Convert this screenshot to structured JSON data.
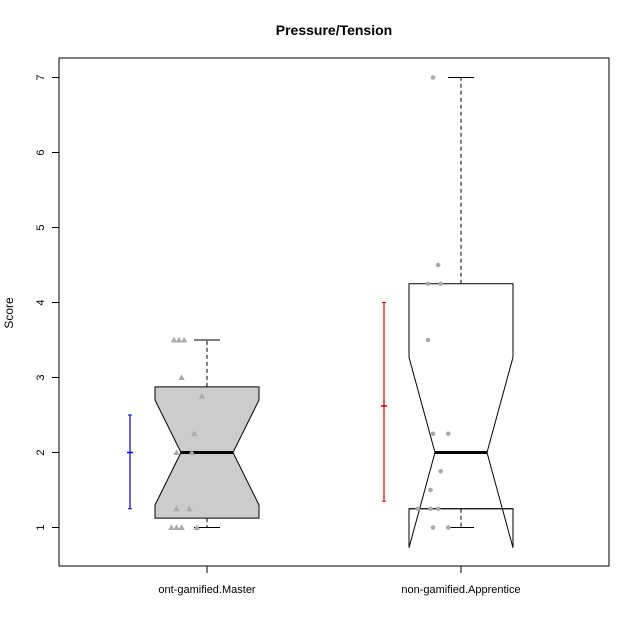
{
  "chart_data": {
    "type": "boxplot",
    "title": "Pressure/Tension",
    "ylabel": "Score",
    "xlabel": "",
    "ylim": [
      0.5,
      7.3
    ],
    "yticks": [
      "1",
      "2",
      "3",
      "4",
      "5",
      "6",
      "7"
    ],
    "grid": false,
    "groups": [
      {
        "label": "ont-gamified.Master",
        "box_fill": "#cccccc",
        "box": {
          "min": 1,
          "q1": 1.125,
          "median": 2,
          "q3": 2.875,
          "max": 3.5,
          "notch_low": 1.3,
          "notch_high": 2.7
        },
        "points_marker": "triangle",
        "points_color": "#aaaaaa",
        "points": [
          {
            "x": 0.87,
            "y": 3.5
          },
          {
            "x": 0.89,
            "y": 3.5
          },
          {
            "x": 0.91,
            "y": 3.5
          },
          {
            "x": 0.9,
            "y": 3.0
          },
          {
            "x": 0.98,
            "y": 2.75
          },
          {
            "x": 0.95,
            "y": 2.25
          },
          {
            "x": 0.88,
            "y": 2.0
          },
          {
            "x": 0.94,
            "y": 2.0
          },
          {
            "x": 0.88,
            "y": 1.25
          },
          {
            "x": 0.93,
            "y": 1.25
          },
          {
            "x": 0.86,
            "y": 1.0
          },
          {
            "x": 0.88,
            "y": 1.0
          },
          {
            "x": 0.9,
            "y": 1.0
          },
          {
            "x": 0.96,
            "y": 1.0
          }
        ],
        "error_bar": {
          "mean": 2.0,
          "low": 1.25,
          "high": 2.5,
          "color": "#0000cc"
        }
      },
      {
        "label": "non-gamified.Apprentice",
        "box_fill": "#ffffff",
        "box": {
          "min": 1,
          "q1": 1.25,
          "median": 2,
          "q3": 4.25,
          "max": 7,
          "notch_low": 0.73,
          "notch_high": 3.27
        },
        "points_marker": "circle",
        "points_color": "#aaaaaa",
        "points": [
          {
            "x": 1.89,
            "y": 7.0
          },
          {
            "x": 1.91,
            "y": 4.5
          },
          {
            "x": 1.87,
            "y": 4.25
          },
          {
            "x": 1.92,
            "y": 4.25
          },
          {
            "x": 1.87,
            "y": 3.5
          },
          {
            "x": 1.95,
            "y": 2.25
          },
          {
            "x": 1.89,
            "y": 2.25
          },
          {
            "x": 1.92,
            "y": 1.75
          },
          {
            "x": 1.88,
            "y": 1.5
          },
          {
            "x": 1.83,
            "y": 1.25
          },
          {
            "x": 1.88,
            "y": 1.25
          },
          {
            "x": 1.91,
            "y": 1.25
          },
          {
            "x": 1.89,
            "y": 1.0
          },
          {
            "x": 1.95,
            "y": 1.0
          }
        ],
        "error_bar": {
          "mean": 2.62,
          "low": 1.35,
          "high": 4.0,
          "color": "#cc0000"
        }
      }
    ]
  }
}
